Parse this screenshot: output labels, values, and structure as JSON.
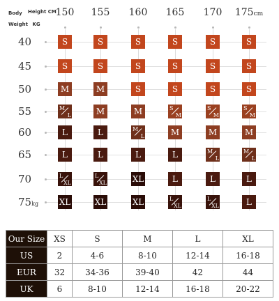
{
  "header": {
    "body_label": "Body",
    "weight_label": "Weight",
    "weight_unit": "KG",
    "height_label": "Height CM"
  },
  "heights": [
    "150",
    "155",
    "160",
    "165",
    "170",
    "175"
  ],
  "height_unit": "cm",
  "weights": [
    "40",
    "45",
    "50",
    "55",
    "60",
    "65",
    "70",
    "75"
  ],
  "weight_last_unit": "kg",
  "colors": {
    "S": "#c2461d",
    "M": "#8d3d22",
    "SM": "#9a4020",
    "ML": "#6e2f1a",
    "L": "#4a1a0f",
    "LXL": "#38120a",
    "XL": "#2a0c07"
  },
  "grid": [
    [
      "S",
      "S",
      "S",
      "S",
      "S",
      "S"
    ],
    [
      "S",
      "S",
      "S",
      "S",
      "S",
      "S"
    ],
    [
      "M",
      "M",
      "S",
      "S",
      "S",
      "S"
    ],
    [
      "M/L",
      "M",
      "M",
      "S/M",
      "S/M",
      "S/M"
    ],
    [
      "L",
      "L",
      "M/L",
      "M",
      "M",
      "M"
    ],
    [
      "L",
      "L",
      "L",
      "L",
      "M/L",
      "M/L"
    ],
    [
      "L/XL",
      "L/XL",
      "XL",
      "L",
      "L",
      "L"
    ],
    [
      "XL",
      "XL",
      "XL",
      "L/XL",
      "L/XL",
      "L"
    ]
  ],
  "size_table": {
    "header": [
      "Our Size",
      "XS",
      "S",
      "M",
      "L",
      "XL"
    ],
    "rows": [
      [
        "US",
        "2",
        "4-6",
        "8-10",
        "12-14",
        "16-18"
      ],
      [
        "EUR",
        "32",
        "34-36",
        "39-40",
        "42",
        "44"
      ],
      [
        "UK",
        "6",
        "8-10",
        "12-14",
        "16-18",
        "20-22"
      ]
    ]
  }
}
